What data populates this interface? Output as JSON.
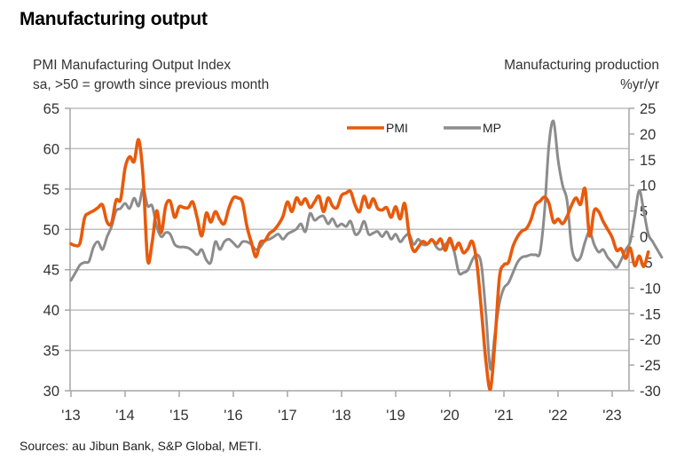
{
  "title": "Manufacturing output",
  "left_axis_label": [
    "PMI Manufacturing Output Index",
    "sa, >50 = growth since previous month"
  ],
  "right_axis_label": [
    "Manufacturing production",
    "%yr/yr"
  ],
  "source": "Sources: au Jibun Bank, S&P Global, METI.",
  "colors": {
    "pmi": "#E85A0C",
    "mp": "#8C8C8C",
    "grid": "#BFBFBF",
    "axis": "#A6A6A6"
  },
  "chart_data": {
    "type": "line",
    "title": "Manufacturing output",
    "xlabel": "",
    "ylabel": "PMI Manufacturing Output Index (sa, >50 = growth since previous month)",
    "y2label": "Manufacturing production %yr/yr",
    "x_ticks": [
      "'13",
      "'14",
      "'15",
      "'16",
      "'17",
      "'18",
      "'19",
      "'20",
      "'21",
      "'22",
      "'23"
    ],
    "x_start": "2013-01",
    "frequency": "monthly",
    "ylim": [
      30,
      65
    ],
    "y_ticks": [
      30,
      35,
      40,
      45,
      50,
      55,
      60,
      65
    ],
    "y2lim": [
      -30,
      25
    ],
    "y2_ticks": [
      -30,
      -25,
      -20,
      -15,
      -10,
      -5,
      0,
      5,
      10,
      15,
      20,
      25
    ],
    "grid": true,
    "legend": "top-center",
    "series": [
      {
        "name": "PMI",
        "axis": "left",
        "values": [
          48.2,
          48.0,
          48.3,
          51.4,
          52.0,
          52.3,
          52.7,
          53.0,
          50.9,
          50.8,
          53.6,
          53.7,
          57.6,
          59.0,
          58.4,
          61.1,
          56.5,
          46.2,
          48.4,
          52.3,
          49.6,
          52.9,
          53.5,
          51.5,
          52.8,
          52.7,
          52.7,
          53.4,
          51.4,
          49.2,
          52.0,
          50.9,
          52.2,
          51.2,
          50.7,
          52.6,
          53.9,
          53.9,
          53.4,
          50.4,
          48.4,
          46.6,
          48.4,
          48.6,
          49.5,
          49.9,
          50.6,
          51.6,
          53.4,
          52.2,
          53.9,
          53.1,
          53.8,
          52.7,
          53.4,
          54.1,
          52.2,
          53.9,
          52.9,
          52.7,
          54.2,
          54.5,
          54.7,
          53.0,
          52.2,
          54.1,
          52.7,
          53.8,
          52.6,
          52.4,
          52.7,
          51.5,
          52.8,
          51.3,
          53.2,
          49.2,
          47.3,
          47.8,
          48.5,
          48.2,
          48.7,
          48.2,
          48.8,
          47.4,
          48.9,
          47.5,
          48.3,
          47.1,
          47.6,
          48.5,
          45.8,
          40.0,
          33.7,
          30.2,
          36.0,
          44.0,
          45.6,
          45.9,
          47.9,
          49.1,
          49.8,
          50.1,
          51.2,
          53.0,
          53.5,
          54.0,
          53.2,
          50.9,
          51.3,
          50.7,
          51.6,
          53.0,
          53.9,
          53.1,
          55.0,
          49.2,
          52.3,
          52.2,
          51.0,
          50.0,
          49.0,
          47.4,
          47.6,
          46.4,
          47.7,
          45.5,
          46.7,
          45.4,
          47.2
        ]
      },
      {
        "name": "MP",
        "axis": "right",
        "values": [
          -8.5,
          -7.0,
          -5.5,
          -5.0,
          -4.8,
          -2.0,
          -1.0,
          -2.5,
          0.0,
          2.0,
          5.0,
          5.5,
          6.5,
          5.5,
          7.5,
          6.0,
          9.3,
          6.0,
          6.0,
          2.0,
          0.0,
          0.8,
          0.5,
          -1.5,
          -2.0,
          -2.0,
          -2.2,
          -2.8,
          -3.5,
          -2.5,
          -4.5,
          -5.0,
          -1.0,
          -2.5,
          -1.0,
          -0.5,
          -1.2,
          -2.0,
          -1.0,
          -1.0,
          -1.5,
          -2.5,
          -2.0,
          -0.8,
          -0.5,
          0.0,
          0.5,
          -0.5,
          0.5,
          1.0,
          1.5,
          2.5,
          1.0,
          4.5,
          3.2,
          3.8,
          4.0,
          2.5,
          3.5,
          2.0,
          2.5,
          2.0,
          3.0,
          0.5,
          1.0,
          3.0,
          0.5,
          0.7,
          1.0,
          0.0,
          1.0,
          -0.5,
          0.5,
          -1.0,
          0.0,
          0.5,
          -1.5,
          -0.5,
          -1.5,
          -1.5,
          -0.5,
          -2.0,
          -2.5,
          -1.5,
          -1.0,
          -3.0,
          -7.0,
          -7.0,
          -6.5,
          -4.5,
          -3.5,
          -5.5,
          -15.0,
          -25.8,
          -19.0,
          -13.0,
          -10.0,
          -9.0,
          -7.0,
          -5.0,
          -4.0,
          -3.8,
          -3.5,
          -3.5,
          -3.0,
          5.0,
          18.0,
          22.5,
          15.0,
          10.0,
          7.0,
          -2.0,
          -4.5,
          -4.0,
          -1.0,
          1.0,
          -1.5,
          -3.0,
          -2.5,
          -4.0,
          -5.0,
          -6.0,
          -4.5,
          -2.5,
          -1.0,
          4.0,
          9.0,
          5.0,
          0.5,
          -1.0,
          -2.5,
          -4.0
        ]
      }
    ]
  }
}
